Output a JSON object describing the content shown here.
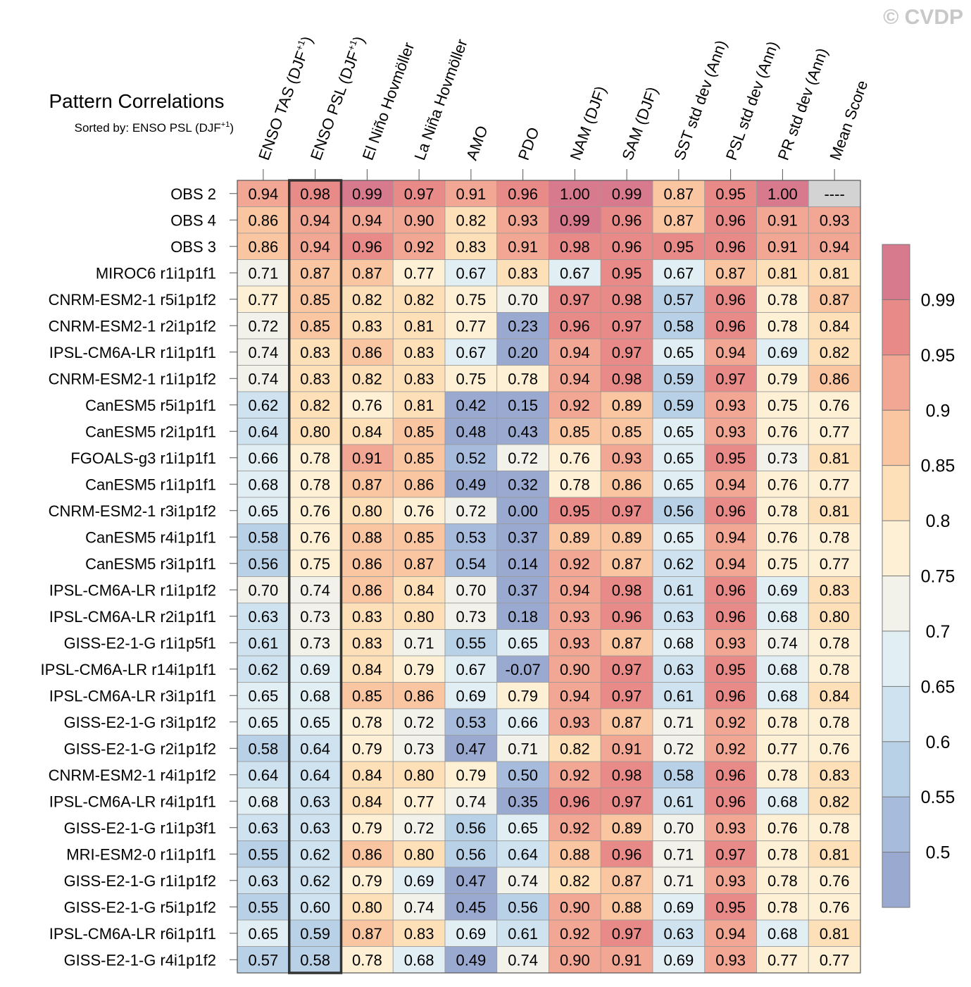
{
  "watermark": "© CVDP",
  "chart_data": {
    "type": "heatmap",
    "title": "Pattern Correlations",
    "subtitle": "Sorted by: ENSO PSL (DJF",
    "subtitle_superscript": "+1",
    "subtitle_suffix": ")",
    "highlight_column": 1,
    "columns": [
      {
        "label": "ENSO TAS (DJF",
        "sup": "+1",
        "suffix": ")"
      },
      {
        "label": "ENSO PSL (DJF",
        "sup": "+1",
        "suffix": ")"
      },
      {
        "label": "El Niño Hovmöller"
      },
      {
        "label": "La Niña Hovmöller"
      },
      {
        "label": "AMO"
      },
      {
        "label": "PDO"
      },
      {
        "label": "NAM (DJF)"
      },
      {
        "label": "SAM (DJF)"
      },
      {
        "label": "SST std dev (Ann)"
      },
      {
        "label": "PSL std dev (Ann)"
      },
      {
        "label": "PR std dev (Ann)"
      },
      {
        "label": "Mean Score"
      }
    ],
    "rows": [
      {
        "name": "OBS 2",
        "values": [
          "0.94",
          "0.98",
          "0.99",
          "0.97",
          "0.91",
          "0.96",
          "1.00",
          "0.99",
          "0.87",
          "0.95",
          "1.00",
          "----"
        ]
      },
      {
        "name": "OBS 4",
        "values": [
          "0.86",
          "0.94",
          "0.94",
          "0.90",
          "0.82",
          "0.93",
          "0.99",
          "0.96",
          "0.87",
          "0.96",
          "0.91",
          "0.93"
        ]
      },
      {
        "name": "OBS 3",
        "values": [
          "0.86",
          "0.94",
          "0.96",
          "0.92",
          "0.83",
          "0.91",
          "0.98",
          "0.96",
          "0.95",
          "0.96",
          "0.91",
          "0.94"
        ]
      },
      {
        "name": "MIROC6 r1i1p1f1",
        "values": [
          "0.71",
          "0.87",
          "0.87",
          "0.77",
          "0.67",
          "0.83",
          "0.67",
          "0.95",
          "0.67",
          "0.87",
          "0.81",
          "0.81"
        ]
      },
      {
        "name": "CNRM-ESM2-1 r5i1p1f2",
        "values": [
          "0.77",
          "0.85",
          "0.82",
          "0.82",
          "0.75",
          "0.70",
          "0.97",
          "0.98",
          "0.57",
          "0.96",
          "0.78",
          "0.87"
        ]
      },
      {
        "name": "CNRM-ESM2-1 r2i1p1f2",
        "values": [
          "0.72",
          "0.85",
          "0.83",
          "0.81",
          "0.77",
          "0.23",
          "0.96",
          "0.97",
          "0.58",
          "0.96",
          "0.78",
          "0.84"
        ]
      },
      {
        "name": "IPSL-CM6A-LR r1i1p1f1",
        "values": [
          "0.74",
          "0.83",
          "0.86",
          "0.83",
          "0.67",
          "0.20",
          "0.94",
          "0.97",
          "0.65",
          "0.94",
          "0.69",
          "0.82"
        ]
      },
      {
        "name": "CNRM-ESM2-1 r1i1p1f2",
        "values": [
          "0.74",
          "0.83",
          "0.82",
          "0.83",
          "0.75",
          "0.78",
          "0.94",
          "0.98",
          "0.59",
          "0.97",
          "0.79",
          "0.86"
        ]
      },
      {
        "name": "CanESM5 r5i1p1f1",
        "values": [
          "0.62",
          "0.82",
          "0.76",
          "0.81",
          "0.42",
          "0.15",
          "0.92",
          "0.89",
          "0.59",
          "0.93",
          "0.75",
          "0.76"
        ]
      },
      {
        "name": "CanESM5 r2i1p1f1",
        "values": [
          "0.64",
          "0.80",
          "0.84",
          "0.85",
          "0.48",
          "0.43",
          "0.85",
          "0.85",
          "0.65",
          "0.93",
          "0.76",
          "0.77"
        ]
      },
      {
        "name": "FGOALS-g3 r1i1p1f1",
        "values": [
          "0.66",
          "0.78",
          "0.91",
          "0.85",
          "0.52",
          "0.72",
          "0.76",
          "0.93",
          "0.65",
          "0.95",
          "0.73",
          "0.81"
        ]
      },
      {
        "name": "CanESM5 r1i1p1f1",
        "values": [
          "0.68",
          "0.78",
          "0.87",
          "0.86",
          "0.49",
          "0.32",
          "0.78",
          "0.86",
          "0.65",
          "0.94",
          "0.76",
          "0.77"
        ]
      },
      {
        "name": "CNRM-ESM2-1 r3i1p1f2",
        "values": [
          "0.65",
          "0.76",
          "0.80",
          "0.76",
          "0.72",
          "0.00",
          "0.95",
          "0.97",
          "0.56",
          "0.96",
          "0.78",
          "0.81"
        ]
      },
      {
        "name": "CanESM5 r4i1p1f1",
        "values": [
          "0.58",
          "0.76",
          "0.88",
          "0.85",
          "0.53",
          "0.37",
          "0.89",
          "0.89",
          "0.65",
          "0.94",
          "0.76",
          "0.78"
        ]
      },
      {
        "name": "CanESM5 r3i1p1f1",
        "values": [
          "0.56",
          "0.75",
          "0.86",
          "0.87",
          "0.54",
          "0.14",
          "0.92",
          "0.87",
          "0.62",
          "0.94",
          "0.75",
          "0.77"
        ]
      },
      {
        "name": "IPSL-CM6A-LR r1i1p1f2",
        "values": [
          "0.70",
          "0.74",
          "0.86",
          "0.84",
          "0.70",
          "0.37",
          "0.94",
          "0.98",
          "0.61",
          "0.96",
          "0.69",
          "0.83"
        ]
      },
      {
        "name": "IPSL-CM6A-LR r2i1p1f1",
        "values": [
          "0.63",
          "0.73",
          "0.83",
          "0.80",
          "0.73",
          "0.18",
          "0.93",
          "0.96",
          "0.63",
          "0.96",
          "0.68",
          "0.80"
        ]
      },
      {
        "name": "GISS-E2-1-G r1i1p5f1",
        "values": [
          "0.61",
          "0.73",
          "0.83",
          "0.71",
          "0.55",
          "0.65",
          "0.93",
          "0.87",
          "0.68",
          "0.93",
          "0.74",
          "0.78"
        ]
      },
      {
        "name": "IPSL-CM6A-LR r14i1p1f1",
        "values": [
          "0.62",
          "0.69",
          "0.84",
          "0.79",
          "0.67",
          "-0.07",
          "0.90",
          "0.97",
          "0.63",
          "0.95",
          "0.68",
          "0.78"
        ]
      },
      {
        "name": "IPSL-CM6A-LR r3i1p1f1",
        "values": [
          "0.65",
          "0.68",
          "0.85",
          "0.86",
          "0.69",
          "0.79",
          "0.94",
          "0.97",
          "0.61",
          "0.96",
          "0.68",
          "0.84"
        ]
      },
      {
        "name": "GISS-E2-1-G r3i1p1f2",
        "values": [
          "0.65",
          "0.65",
          "0.78",
          "0.72",
          "0.53",
          "0.66",
          "0.93",
          "0.87",
          "0.71",
          "0.92",
          "0.78",
          "0.78"
        ]
      },
      {
        "name": "GISS-E2-1-G r2i1p1f2",
        "values": [
          "0.58",
          "0.64",
          "0.79",
          "0.73",
          "0.47",
          "0.71",
          "0.82",
          "0.91",
          "0.72",
          "0.92",
          "0.77",
          "0.76"
        ]
      },
      {
        "name": "CNRM-ESM2-1 r4i1p1f2",
        "values": [
          "0.64",
          "0.64",
          "0.84",
          "0.80",
          "0.79",
          "0.50",
          "0.92",
          "0.98",
          "0.58",
          "0.96",
          "0.78",
          "0.83"
        ]
      },
      {
        "name": "IPSL-CM6A-LR r4i1p1f1",
        "values": [
          "0.68",
          "0.63",
          "0.84",
          "0.77",
          "0.74",
          "0.35",
          "0.96",
          "0.97",
          "0.61",
          "0.96",
          "0.68",
          "0.82"
        ]
      },
      {
        "name": "GISS-E2-1-G r1i1p3f1",
        "values": [
          "0.63",
          "0.63",
          "0.79",
          "0.72",
          "0.56",
          "0.65",
          "0.92",
          "0.89",
          "0.70",
          "0.93",
          "0.76",
          "0.78"
        ]
      },
      {
        "name": "MRI-ESM2-0 r1i1p1f1",
        "values": [
          "0.55",
          "0.62",
          "0.86",
          "0.80",
          "0.56",
          "0.64",
          "0.88",
          "0.96",
          "0.71",
          "0.97",
          "0.78",
          "0.81"
        ]
      },
      {
        "name": "GISS-E2-1-G r1i1p1f2",
        "values": [
          "0.63",
          "0.62",
          "0.79",
          "0.69",
          "0.47",
          "0.74",
          "0.82",
          "0.87",
          "0.71",
          "0.93",
          "0.78",
          "0.76"
        ]
      },
      {
        "name": "GISS-E2-1-G r5i1p1f2",
        "values": [
          "0.55",
          "0.60",
          "0.80",
          "0.74",
          "0.45",
          "0.56",
          "0.90",
          "0.88",
          "0.69",
          "0.95",
          "0.78",
          "0.76"
        ]
      },
      {
        "name": "IPSL-CM6A-LR r6i1p1f1",
        "values": [
          "0.65",
          "0.59",
          "0.87",
          "0.83",
          "0.69",
          "0.61",
          "0.92",
          "0.97",
          "0.63",
          "0.94",
          "0.68",
          "0.81"
        ]
      },
      {
        "name": "GISS-E2-1-G r4i1p1f2",
        "values": [
          "0.57",
          "0.58",
          "0.78",
          "0.68",
          "0.49",
          "0.74",
          "0.90",
          "0.91",
          "0.69",
          "0.93",
          "0.77",
          "0.77"
        ]
      }
    ],
    "colorbar": {
      "levels": [
        "0.5",
        "0.55",
        "0.6",
        "0.65",
        "0.7",
        "0.75",
        "0.8",
        "0.85",
        "0.9",
        "0.95",
        "0.99"
      ],
      "colors": [
        "#9aa9d0",
        "#a7bcdc",
        "#b9d1e6",
        "#cee2ef",
        "#e1eff5",
        "#f2f2ea",
        "#fdf0d4",
        "#fddfb8",
        "#f9c6a1",
        "#f2a794",
        "#e88b88",
        "#d87a8e"
      ],
      "missing_color": "#d3d3d3"
    }
  }
}
